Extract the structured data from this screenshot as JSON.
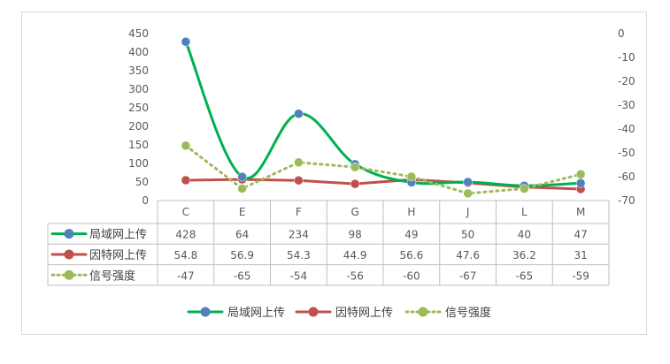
{
  "chart_data": {
    "type": "line",
    "categories": [
      "C",
      "E",
      "F",
      "G",
      "H",
      "J",
      "L",
      "M"
    ],
    "series": [
      {
        "name": "局域网上传",
        "axis": "left",
        "color": "#00b050",
        "marker_color": "#4f81bd",
        "style": "smooth-solid",
        "values": [
          428,
          64,
          234,
          98,
          49,
          50,
          40,
          47
        ]
      },
      {
        "name": "因特网上传",
        "axis": "left",
        "color": "#c0504d",
        "marker_color": "#c0504d",
        "style": "solid",
        "values": [
          54.8,
          56.9,
          54.3,
          44.9,
          56.6,
          47.6,
          36.2,
          31
        ]
      },
      {
        "name": "信号强度",
        "axis": "right",
        "color": "#9bbb59",
        "marker_color": "#9bbb59",
        "style": "dotted",
        "values": [
          -47,
          -65,
          -54,
          -56,
          -60,
          -67,
          -65,
          -59
        ]
      }
    ],
    "y_left": {
      "min": 0,
      "max": 450,
      "step": 50,
      "ticks": [
        "0",
        "50",
        "100",
        "150",
        "200",
        "250",
        "300",
        "350",
        "400",
        "450"
      ]
    },
    "y_right": {
      "min": -70,
      "max": 0,
      "step": 10,
      "ticks": [
        "-70",
        "-60",
        "-50",
        "-40",
        "-30",
        "-20",
        "-10",
        "0"
      ]
    },
    "grid": false,
    "data_table": true,
    "legend_position": "bottom"
  }
}
